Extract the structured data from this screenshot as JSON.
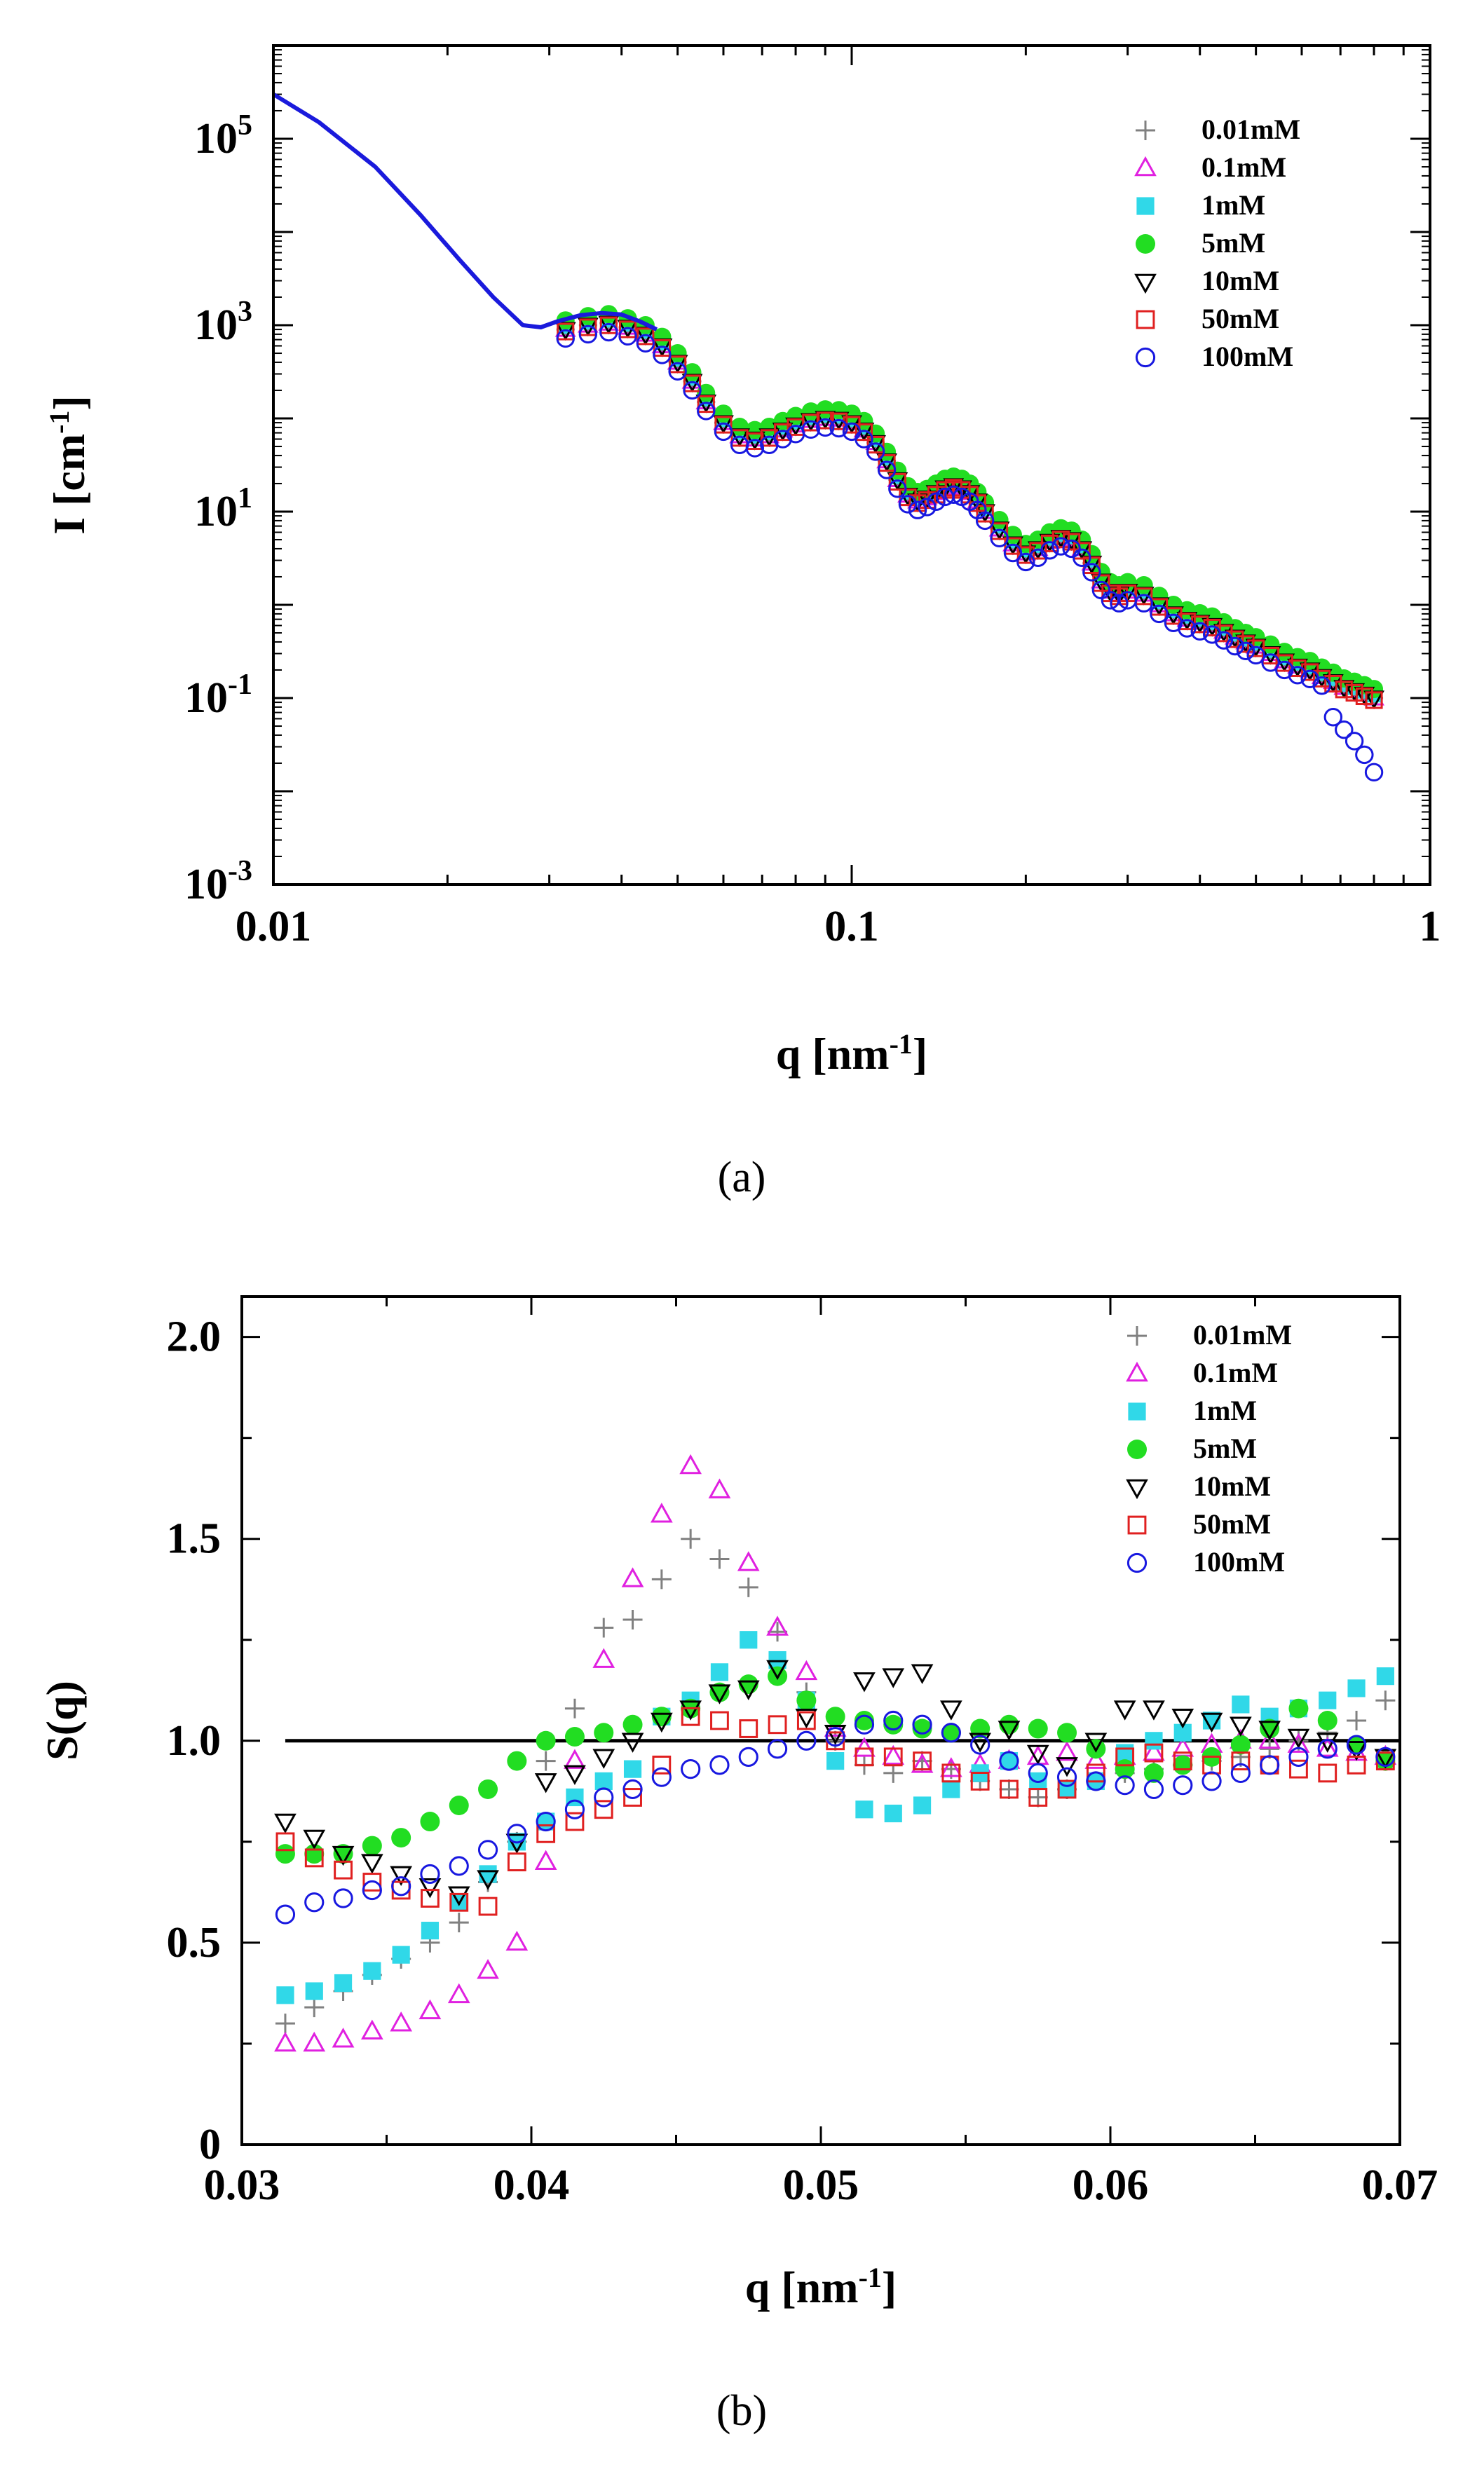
{
  "chart_data": [
    {
      "type": "scatter",
      "panel": "a",
      "caption": "(a)",
      "xscale": "log",
      "yscale": "log",
      "xlabel": "q [nm",
      "xlabel_sup": "-1",
      "xlabel_end": "]",
      "ylabel": "I [cm",
      "ylabel_sup": "-1",
      "ylabel_end": "]",
      "xlim": [
        0.01,
        1
      ],
      "ylim": [
        0.001,
        1000000
      ],
      "xticks": [
        {
          "value": 0.01,
          "label": "0.01"
        },
        {
          "value": 0.1,
          "label": "0.1"
        },
        {
          "value": 1,
          "label": "1"
        }
      ],
      "yticks": [
        {
          "value": 0.001,
          "base": "10",
          "exp": "-3"
        },
        {
          "value": 0.1,
          "base": "10",
          "exp": "-1"
        },
        {
          "value": 10,
          "base": "10",
          "exp": "1"
        },
        {
          "value": 1000,
          "base": "10",
          "exp": "3"
        },
        {
          "value": 100000,
          "base": "10",
          "exp": "5"
        }
      ],
      "legend_position": "top-right",
      "model_curve": {
        "color": "#1a1adc",
        "x": [
          0.01,
          0.012,
          0.015,
          0.018,
          0.021,
          0.024,
          0.027,
          0.029,
          0.031,
          0.034,
          0.037,
          0.04,
          0.043,
          0.046
        ],
        "y": [
          300000,
          150000,
          50000,
          15000,
          5000,
          2000,
          1000,
          950,
          1100,
          1280,
          1350,
          1300,
          1100,
          900
        ]
      },
      "series_model": {
        "x": [
          0.032,
          0.035,
          0.038,
          0.041,
          0.044,
          0.047,
          0.05,
          0.053,
          0.056,
          0.06,
          0.064,
          0.068,
          0.072,
          0.076,
          0.08,
          0.085,
          0.09,
          0.095,
          0.1,
          0.105,
          0.11,
          0.115,
          0.12,
          0.125,
          0.13,
          0.135,
          0.14,
          0.145,
          0.15,
          0.155,
          0.16,
          0.165,
          0.17,
          0.18,
          0.19,
          0.2,
          0.21,
          0.22,
          0.23,
          0.24,
          0.25,
          0.26,
          0.27,
          0.28,
          0.29,
          0.3,
          0.32,
          0.34,
          0.36,
          0.38,
          0.4,
          0.42,
          0.44,
          0.46,
          0.48,
          0.5,
          0.53,
          0.56,
          0.59,
          0.62,
          0.65,
          0.68,
          0.71,
          0.74,
          0.77,
          0.8
        ],
        "y": [
          900,
          1000,
          1050,
          950,
          800,
          600,
          400,
          250,
          150,
          90,
          65,
          60,
          65,
          75,
          85,
          95,
          100,
          98,
          90,
          75,
          55,
          35,
          22,
          15,
          13,
          14,
          16,
          18,
          19,
          18,
          16,
          13,
          10,
          6.5,
          4.5,
          3.6,
          4.0,
          4.8,
          5.3,
          5.0,
          4.0,
          2.8,
          1.8,
          1.4,
          1.3,
          1.4,
          1.3,
          1.0,
          0.8,
          0.7,
          0.65,
          0.6,
          0.52,
          0.45,
          0.4,
          0.36,
          0.3,
          0.25,
          0.22,
          0.2,
          0.17,
          0.15,
          0.13,
          0.12,
          0.11,
          0.1
        ]
      },
      "series": [
        {
          "name": "0.01mM",
          "marker": "plus",
          "color": "#808080",
          "factor": 1.0
        },
        {
          "name": "0.1mM",
          "marker": "triangle-up",
          "color": "#e020e0",
          "factor": 1.0
        },
        {
          "name": "1mM",
          "marker": "square-filled",
          "color": "#30d8e8",
          "factor": 1.1
        },
        {
          "name": "5mM",
          "marker": "circle-filled",
          "color": "#22dd22",
          "factor": 1.25
        },
        {
          "name": "10mM",
          "marker": "triangle-down",
          "color": "#000000",
          "factor": 1.0
        },
        {
          "name": "50mM",
          "marker": "square",
          "color": "#e02020",
          "factor": 0.95
        },
        {
          "name": "100mM",
          "marker": "circle",
          "color": "#1818e0",
          "factor": 0.8
        }
      ]
    },
    {
      "type": "scatter",
      "panel": "b",
      "caption": "(b)",
      "xlabel": "q [nm",
      "xlabel_sup": "-1",
      "xlabel_end": "]",
      "ylabel": "S(q)",
      "xlim": [
        0.03,
        0.07
      ],
      "ylim": [
        0,
        2.1
      ],
      "xticks": [
        {
          "value": 0.03,
          "label": "0.03"
        },
        {
          "value": 0.04,
          "label": "0.04"
        },
        {
          "value": 0.05,
          "label": "0.05"
        },
        {
          "value": 0.06,
          "label": "0.06"
        },
        {
          "value": 0.07,
          "label": "0.07"
        }
      ],
      "yticks": [
        {
          "value": 0,
          "label": "0"
        },
        {
          "value": 0.5,
          "label": "0.5"
        },
        {
          "value": 1.0,
          "label": "1.0"
        },
        {
          "value": 1.5,
          "label": "1.5"
        },
        {
          "value": 2.0,
          "label": "2.0"
        }
      ],
      "reference_line": {
        "y": 1.0,
        "color": "#000000"
      },
      "legend_position": "top-right",
      "x": [
        0.0315,
        0.0325,
        0.0335,
        0.0345,
        0.0355,
        0.0365,
        0.0375,
        0.0385,
        0.0395,
        0.0405,
        0.0415,
        0.0425,
        0.0435,
        0.0445,
        0.0455,
        0.0465,
        0.0475,
        0.0485,
        0.0495,
        0.0505,
        0.0515,
        0.0525,
        0.0535,
        0.0545,
        0.0555,
        0.0565,
        0.0575,
        0.0585,
        0.0595,
        0.0605,
        0.0615,
        0.0625,
        0.0635,
        0.0645,
        0.0655,
        0.0665,
        0.0675,
        0.0685,
        0.0695
      ],
      "series": [
        {
          "name": "0.01mM",
          "marker": "plus",
          "color": "#808080",
          "values": [
            0.3,
            0.34,
            0.38,
            0.42,
            0.46,
            0.5,
            0.55,
            0.65,
            0.75,
            0.95,
            1.08,
            1.28,
            1.3,
            1.4,
            1.5,
            1.45,
            1.38,
            1.27,
            1.12,
            1.0,
            0.94,
            0.92,
            0.95,
            0.93,
            0.9,
            0.88,
            0.86,
            0.88,
            0.9,
            0.92,
            0.93,
            0.94,
            0.95,
            0.96,
            0.98,
            1.0,
            1.02,
            1.05,
            1.1
          ]
        },
        {
          "name": "0.1mM",
          "marker": "triangle-up",
          "color": "#e020e0",
          "values": [
            0.25,
            0.25,
            0.26,
            0.28,
            0.3,
            0.33,
            0.37,
            0.43,
            0.5,
            0.7,
            0.95,
            1.2,
            1.4,
            1.56,
            1.68,
            1.62,
            1.44,
            1.28,
            1.17,
            1.03,
            0.98,
            0.96,
            0.94,
            0.93,
            0.94,
            0.95,
            0.96,
            0.97,
            0.95,
            0.96,
            0.97,
            0.98,
            0.99,
            1.0,
            1.0,
            0.99,
            0.98,
            0.97,
            0.96
          ]
        },
        {
          "name": "1mM",
          "marker": "square-filled",
          "color": "#30d8e8",
          "values": [
            0.37,
            0.38,
            0.4,
            0.43,
            0.47,
            0.53,
            0.6,
            0.67,
            0.75,
            0.8,
            0.86,
            0.9,
            0.93,
            1.06,
            1.1,
            1.17,
            1.25,
            1.2,
            1.1,
            0.95,
            0.83,
            0.82,
            0.84,
            0.88,
            0.92,
            0.95,
            0.9,
            0.88,
            0.9,
            0.97,
            1.0,
            1.02,
            1.05,
            1.09,
            1.06,
            1.08,
            1.1,
            1.13,
            1.16
          ]
        },
        {
          "name": "5mM",
          "marker": "circle-filled",
          "color": "#22dd22",
          "values": [
            0.72,
            0.72,
            0.72,
            0.74,
            0.76,
            0.8,
            0.84,
            0.88,
            0.95,
            1.0,
            1.01,
            1.02,
            1.04,
            1.06,
            1.08,
            1.12,
            1.14,
            1.16,
            1.1,
            1.06,
            1.05,
            1.04,
            1.03,
            1.02,
            1.03,
            1.04,
            1.03,
            1.02,
            0.98,
            0.93,
            0.92,
            0.94,
            0.96,
            0.99,
            1.03,
            1.08,
            1.05,
            0.99,
            0.95
          ]
        },
        {
          "name": "10mM",
          "marker": "triangle-down",
          "color": "#000000",
          "values": [
            0.8,
            0.76,
            0.72,
            0.7,
            0.67,
            0.64,
            0.62,
            0.66,
            0.75,
            0.9,
            0.92,
            0.96,
            1.0,
            1.05,
            1.08,
            1.12,
            1.13,
            1.18,
            1.06,
            1.02,
            1.15,
            1.16,
            1.17,
            1.08,
            1.0,
            1.03,
            0.97,
            0.94,
            1.0,
            1.08,
            1.08,
            1.06,
            1.05,
            1.04,
            1.03,
            1.01,
            1.0,
            0.98,
            0.96
          ]
        },
        {
          "name": "50mM",
          "marker": "square",
          "color": "#e02020",
          "values": [
            0.75,
            0.71,
            0.68,
            0.65,
            0.63,
            0.61,
            0.6,
            0.59,
            0.7,
            0.77,
            0.8,
            0.83,
            0.86,
            0.94,
            1.06,
            1.05,
            1.03,
            1.04,
            1.05,
            1.0,
            0.96,
            0.96,
            0.95,
            0.92,
            0.9,
            0.88,
            0.86,
            0.88,
            0.92,
            0.96,
            0.97,
            0.95,
            0.94,
            0.95,
            0.94,
            0.93,
            0.92,
            0.94,
            0.95
          ]
        },
        {
          "name": "100mM",
          "marker": "circle",
          "color": "#1818e0",
          "values": [
            0.57,
            0.6,
            0.61,
            0.63,
            0.64,
            0.67,
            0.69,
            0.73,
            0.77,
            0.8,
            0.83,
            0.86,
            0.88,
            0.91,
            0.93,
            0.94,
            0.96,
            0.98,
            1.0,
            1.01,
            1.04,
            1.05,
            1.04,
            1.02,
            0.99,
            0.95,
            0.92,
            0.91,
            0.9,
            0.89,
            0.88,
            0.89,
            0.9,
            0.92,
            0.94,
            0.96,
            0.98,
            0.99,
            0.96
          ]
        }
      ]
    }
  ]
}
